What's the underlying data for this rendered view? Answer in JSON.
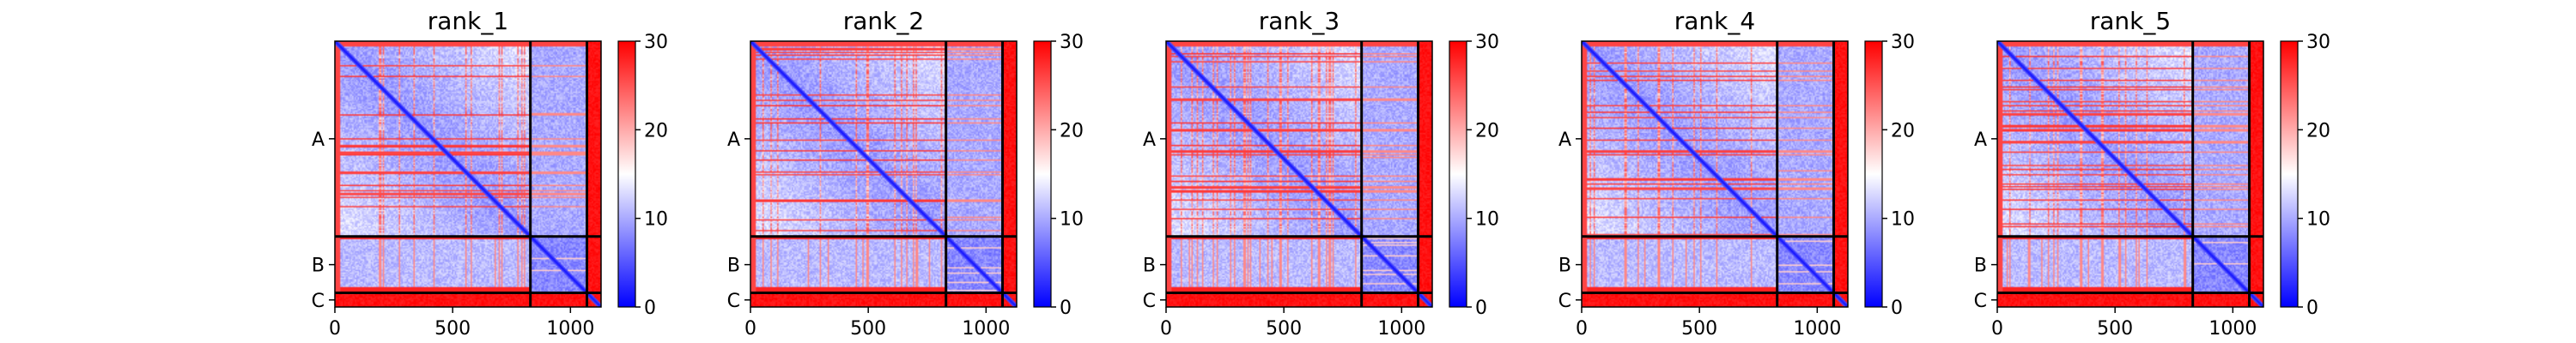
{
  "chart_data": {
    "type": "heatmap",
    "colormap": "bwr",
    "cmap_colors": [
      "#0000ff",
      "#ffffff",
      "#ff0000"
    ],
    "vmin": 0,
    "vmax": 30,
    "colorbar_ticks": [
      0,
      10,
      20,
      30
    ],
    "x_ticks": [
      0,
      500,
      1000
    ],
    "x_range": [
      0,
      1130
    ],
    "chain_boundaries": [
      830,
      1070
    ],
    "y_tick_labels": [
      "A",
      "B",
      "C"
    ],
    "panels": [
      {
        "title": "rank_1"
      },
      {
        "title": "rank_2"
      },
      {
        "title": "rank_3"
      },
      {
        "title": "rank_4"
      },
      {
        "title": "rank_5"
      }
    ]
  }
}
